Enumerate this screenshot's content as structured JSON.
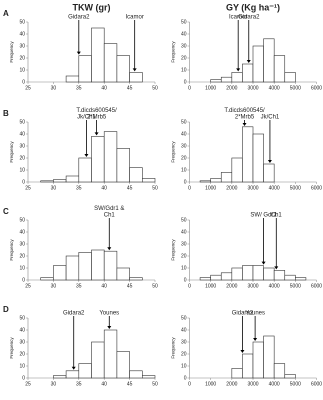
{
  "chart_data": [
    {
      "type": "histogram",
      "panel_label": "A",
      "title": "TKW (gr)",
      "ylabel": "Frequency",
      "bins": [
        32.5,
        35,
        37.5,
        40,
        42.5,
        45,
        47.5
      ],
      "values": [
        5,
        22,
        45,
        32,
        22,
        8
      ],
      "xlim": [
        25,
        50
      ],
      "xticks": [
        25,
        30,
        35,
        40,
        45,
        50
      ],
      "ylim": [
        0,
        50
      ],
      "yticks": [
        0,
        10,
        20,
        30,
        40,
        50
      ],
      "annotations": [
        {
          "lines": [
            "Gidara2"
          ],
          "x": 35
        },
        {
          "lines": [
            "Icamor"
          ],
          "x": 46
        }
      ]
    },
    {
      "type": "histogram",
      "title": "GY (Kg ha⁻¹)",
      "ylabel": "Frequency",
      "bins": [
        1000,
        1500,
        2000,
        2500,
        3000,
        3500,
        4000,
        4500,
        5000
      ],
      "values": [
        2,
        4,
        8,
        15,
        30,
        36,
        22,
        8
      ],
      "xlim": [
        0,
        6000
      ],
      "xticks": [
        0,
        1000,
        2000,
        3000,
        4000,
        5000,
        6000
      ],
      "ylim": [
        0,
        50
      ],
      "yticks": [
        0,
        10,
        20,
        30,
        40,
        50
      ],
      "annotations": [
        {
          "lines": [
            "Icamor"
          ],
          "x": 2300
        },
        {
          "lines": [
            "Gidara2"
          ],
          "x": 2800
        }
      ]
    },
    {
      "type": "histogram",
      "panel_label": "B",
      "ylabel": "Frequency",
      "bins": [
        27.5,
        30,
        32.5,
        35,
        37.5,
        40,
        42.5,
        45,
        47.5,
        50
      ],
      "values": [
        1,
        2,
        5,
        20,
        38,
        42,
        28,
        12,
        3
      ],
      "xlim": [
        25,
        50
      ],
      "xticks": [
        25,
        30,
        35,
        40,
        45,
        50
      ],
      "ylim": [
        0,
        50
      ],
      "yticks": [
        0,
        10,
        20,
        30,
        40,
        50
      ],
      "annotations": [
        {
          "lines": [
            "Jk/Ch1"
          ],
          "x": 36.5
        },
        {
          "lines": [
            "T.dicds600545/",
            "2*Mrb5"
          ],
          "x": 38.5
        }
      ]
    },
    {
      "type": "histogram",
      "ylabel": "Frequency",
      "bins": [
        500,
        1000,
        1500,
        2000,
        2500,
        3000,
        3500,
        4000
      ],
      "values": [
        1,
        3,
        8,
        20,
        46,
        40,
        15
      ],
      "xlim": [
        0,
        6000
      ],
      "xticks": [
        0,
        1000,
        2000,
        3000,
        4000,
        5000,
        6000
      ],
      "ylim": [
        0,
        50
      ],
      "yticks": [
        0,
        10,
        20,
        30,
        40,
        50
      ],
      "annotations": [
        {
          "lines": [
            "T.dicds600545/",
            "2*Mrb5"
          ],
          "x": 2600
        },
        {
          "lines": [
            "Jk/Ch1"
          ],
          "x": 3800
        }
      ]
    },
    {
      "type": "histogram",
      "panel_label": "C",
      "ylabel": "Frequency",
      "bins": [
        27.5,
        30,
        32.5,
        35,
        37.5,
        40,
        42.5,
        45,
        47.5
      ],
      "values": [
        2,
        12,
        20,
        23,
        25,
        24,
        10,
        2
      ],
      "xlim": [
        25,
        50
      ],
      "xticks": [
        25,
        30,
        35,
        40,
        45,
        50
      ],
      "ylim": [
        0,
        50
      ],
      "yticks": [
        0,
        10,
        20,
        30,
        40,
        50
      ],
      "annotations": [
        {
          "lines": [
            "SW/Gdr1 &",
            "Ch1"
          ],
          "x": 41
        }
      ]
    },
    {
      "type": "histogram",
      "ylabel": "Frequency",
      "bins": [
        500,
        1000,
        1500,
        2000,
        2500,
        3000,
        3500,
        4000,
        4500,
        5000,
        5500
      ],
      "values": [
        2,
        4,
        6,
        10,
        12,
        12,
        10,
        8,
        4,
        2
      ],
      "xlim": [
        0,
        6000
      ],
      "xticks": [
        0,
        1000,
        2000,
        3000,
        4000,
        5000,
        6000
      ],
      "ylim": [
        0,
        50
      ],
      "yticks": [
        0,
        10,
        20,
        30,
        40,
        50
      ],
      "annotations": [
        {
          "lines": [
            "SW/ Gdr1"
          ],
          "x": 3500
        },
        {
          "lines": [
            "Ch1"
          ],
          "x": 4100
        }
      ]
    },
    {
      "type": "histogram",
      "panel_label": "D",
      "ylabel": "Frequency",
      "bins": [
        30,
        32.5,
        35,
        37.5,
        40,
        42.5,
        45,
        47.5,
        50
      ],
      "values": [
        2,
        6,
        12,
        30,
        40,
        22,
        6,
        2
      ],
      "xlim": [
        25,
        50
      ],
      "xticks": [
        25,
        30,
        35,
        40,
        45,
        50
      ],
      "ylim": [
        0,
        50
      ],
      "yticks": [
        0,
        10,
        20,
        30,
        40,
        50
      ],
      "annotations": [
        {
          "lines": [
            "Gidara2"
          ],
          "x": 34
        },
        {
          "lines": [
            "Younes"
          ],
          "x": 41
        }
      ]
    },
    {
      "type": "histogram",
      "ylabel": "Frequency",
      "bins": [
        2000,
        2500,
        3000,
        3500,
        4000,
        4500,
        5000
      ],
      "values": [
        8,
        20,
        30,
        35,
        12,
        3
      ],
      "xlim": [
        0,
        6000
      ],
      "xticks": [
        0,
        1000,
        2000,
        3000,
        4000,
        5000,
        6000
      ],
      "ylim": [
        0,
        50
      ],
      "yticks": [
        0,
        10,
        20,
        30,
        40,
        50
      ],
      "annotations": [
        {
          "lines": [
            "Gidara2"
          ],
          "x": 2500
        },
        {
          "lines": [
            "Younes"
          ],
          "x": 3100
        }
      ]
    }
  ]
}
